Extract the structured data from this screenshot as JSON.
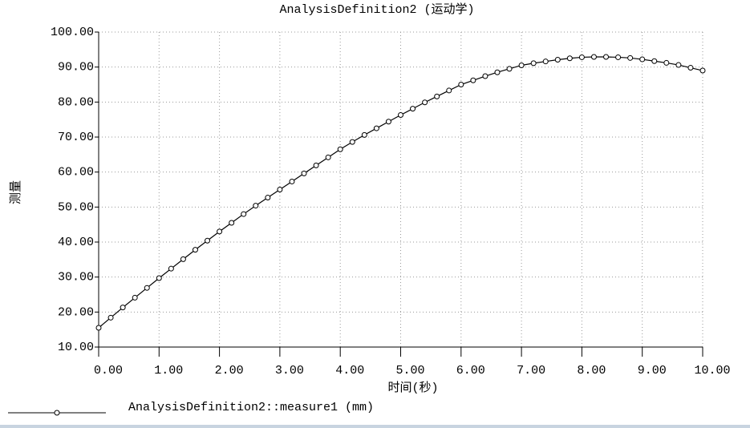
{
  "chart_data": {
    "type": "line",
    "title": "AnalysisDefinition2 (运动学)",
    "x_label": "时间(秒)",
    "y_label": "测量",
    "x": [
      0,
      0.2,
      0.4,
      0.6,
      0.8,
      1,
      1.2,
      1.4,
      1.6,
      1.8,
      2,
      2.2,
      2.4,
      2.6,
      2.8,
      3,
      3.2,
      3.4,
      3.6,
      3.8,
      4,
      4.2,
      4.4,
      4.6,
      4.8,
      5,
      5.2,
      5.4,
      5.6,
      5.8,
      6,
      6.2,
      6.4,
      6.6,
      6.8,
      7,
      7.2,
      7.4,
      7.6,
      7.8,
      8,
      8.2,
      8.4,
      8.6,
      8.8,
      9,
      9.2,
      9.4,
      9.6,
      9.8,
      10
    ],
    "series": [
      {
        "name": "AnalysisDefinition2::measure1 (mm)",
        "color": "#000000",
        "values": [
          15.5,
          18.4,
          21.3,
          24.1,
          26.9,
          29.7,
          32.4,
          35.1,
          37.8,
          40.4,
          43.0,
          45.5,
          48.0,
          50.4,
          52.7,
          55.0,
          57.3,
          59.6,
          61.9,
          64.2,
          66.5,
          68.6,
          70.6,
          72.5,
          74.4,
          76.3,
          78.1,
          79.9,
          81.6,
          83.3,
          85.0,
          86.2,
          87.4,
          88.5,
          89.5,
          90.5,
          91.1,
          91.6,
          92.1,
          92.5,
          92.8,
          92.9,
          92.9,
          92.8,
          92.6,
          92.2,
          91.7,
          91.2,
          90.6,
          89.8,
          89.0
        ]
      }
    ],
    "xlim": [
      0,
      10
    ],
    "ylim": [
      10,
      100
    ],
    "xticks": [
      {
        "value": 0,
        "label": "0.00"
      },
      {
        "value": 1,
        "label": "1.00"
      },
      {
        "value": 2,
        "label": "2.00"
      },
      {
        "value": 3,
        "label": "3.00"
      },
      {
        "value": 4,
        "label": "4.00"
      },
      {
        "value": 5,
        "label": "5.00"
      },
      {
        "value": 6,
        "label": "6.00"
      },
      {
        "value": 7,
        "label": "7.00"
      },
      {
        "value": 8,
        "label": "8.00"
      },
      {
        "value": 9,
        "label": "9.00"
      },
      {
        "value": 10,
        "label": "10.00"
      }
    ],
    "yticks": [
      {
        "value": 10,
        "label": "10.00"
      },
      {
        "value": 20,
        "label": "20.00"
      },
      {
        "value": 30,
        "label": "30.00"
      },
      {
        "value": 40,
        "label": "40.00"
      },
      {
        "value": 50,
        "label": "50.00"
      },
      {
        "value": 60,
        "label": "60.00"
      },
      {
        "value": 70,
        "label": "70.00"
      },
      {
        "value": 80,
        "label": "80.00"
      },
      {
        "value": 90,
        "label": "90.00"
      },
      {
        "value": 100,
        "label": "100.00"
      }
    ],
    "grid": true
  }
}
